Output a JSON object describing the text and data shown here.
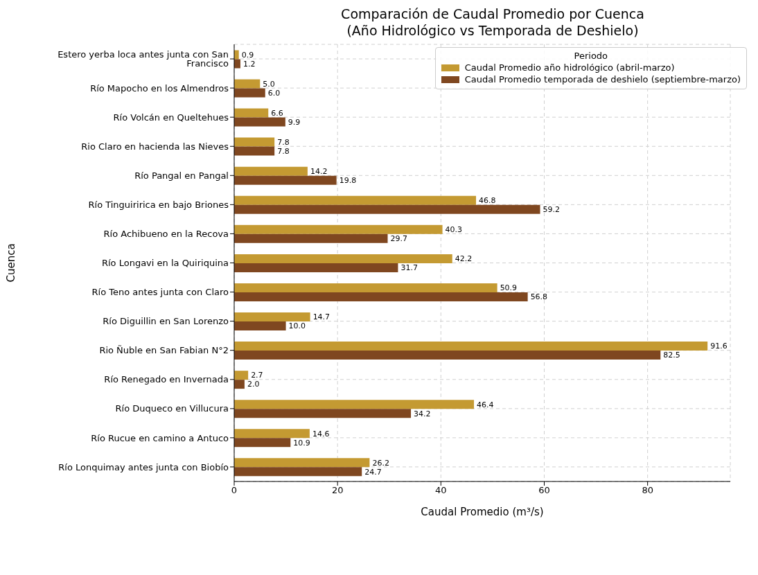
{
  "chart_data": {
    "type": "bar",
    "orientation": "horizontal",
    "title": "Comparación de Caudal Promedio por Cuenca\n(Año Hidrológico vs Temporada de Deshielo)",
    "xlabel": "Caudal Promedio (m³/s)",
    "ylabel": "Cuenca",
    "legend_title": "Periodo",
    "categories": [
      "Estero yerba loca antes junta con San Francisco",
      "Río Mapocho en los Almendros",
      "Río Volcán en Queltehues",
      "Rio Claro en hacienda las Nieves",
      "Río Pangal en Pangal",
      "Río Tinguiririca en bajo Briones",
      "Río Achibueno en la Recova",
      "Río Longavi en la Quiriquina",
      "Río Teno antes junta con Claro",
      "Río Diguillin en San Lorenzo",
      "Rio Ñuble en San Fabian N°2",
      "Río Renegado en Invernada",
      "Río Duqueco en Villucura",
      "Río Rucue en camino a Antuco",
      "Río Lonquimay antes junta con Biobío"
    ],
    "series": [
      {
        "name": "Caudal Promedio año hidrológico (abril-marzo)",
        "color": "#c49a32",
        "values": [
          0.9,
          5.0,
          6.6,
          7.8,
          14.2,
          46.8,
          40.3,
          42.2,
          50.9,
          14.7,
          91.6,
          2.7,
          46.4,
          14.6,
          26.2
        ],
        "value_labels": [
          "0.9",
          "5.0",
          "6.6",
          "7.8",
          "14.2",
          "46.8",
          "40.3",
          "42.2",
          "50.9",
          "14.7",
          "91.6",
          "2.7",
          "46.4",
          "14.6",
          "26.2"
        ]
      },
      {
        "name": "Caudal Promedio temporada de deshielo (septiembre-marzo)",
        "color": "#7f4720",
        "values": [
          1.2,
          6.0,
          9.9,
          7.8,
          19.8,
          59.2,
          29.7,
          31.7,
          56.8,
          10.0,
          82.5,
          2.0,
          34.2,
          10.9,
          24.7
        ],
        "value_labels": [
          "1.2",
          "6.0",
          "9.9",
          "7.8",
          "19.8",
          "59.2",
          "29.7",
          "31.7",
          "56.8",
          "10.0",
          "82.5",
          "2.0",
          "34.2",
          "10.9",
          "24.7"
        ]
      }
    ],
    "xlim": [
      0,
      96
    ],
    "xticks": [
      0,
      20,
      40,
      60,
      80
    ],
    "grid": true,
    "legend": "top right"
  }
}
